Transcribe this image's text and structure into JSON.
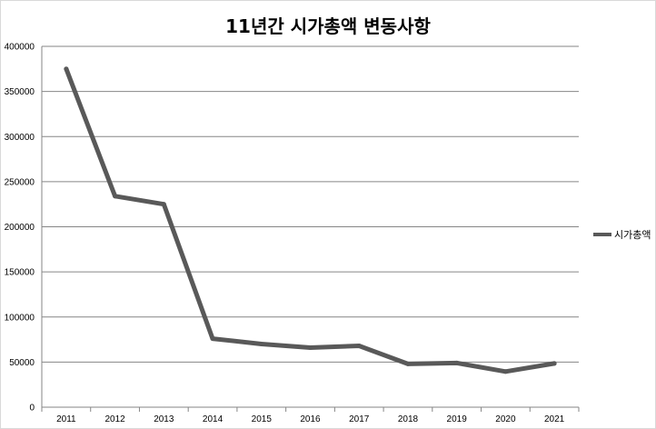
{
  "chart_data": {
    "type": "line",
    "title": "11년간 시가총액 변동사항",
    "xlabel": "",
    "ylabel": "",
    "categories": [
      "2011",
      "2012",
      "2013",
      "2014",
      "2015",
      "2016",
      "2017",
      "2018",
      "2019",
      "2020",
      "2021"
    ],
    "series": [
      {
        "name": "시가총액",
        "color": "#595959",
        "values": [
          375000,
          234000,
          225000,
          76000,
          70000,
          66000,
          68000,
          48000,
          49000,
          39500,
          48500
        ]
      }
    ],
    "ylim": [
      0,
      400000
    ],
    "yticks": [
      "0",
      "50000",
      "100000",
      "150000",
      "200000",
      "250000",
      "300000",
      "350000",
      "400000"
    ],
    "grid": true,
    "legend_position": "right"
  }
}
